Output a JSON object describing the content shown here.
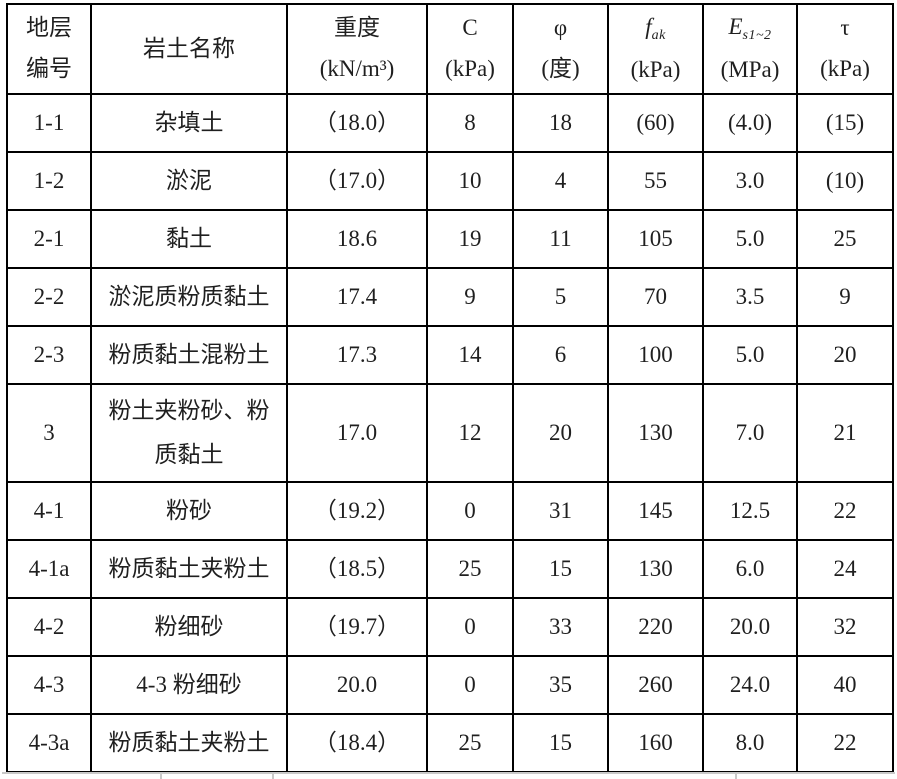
{
  "header": {
    "layer_no_line1": "地层",
    "layer_no_line2": "编号",
    "soil_name": "岩土名称",
    "unit_weight_title": "重度",
    "unit_weight_unit": "(kN/m³)",
    "cohesion_symbol": "C",
    "cohesion_unit": "(kPa)",
    "phi_symbol": "φ",
    "phi_unit": "(度)",
    "fak_symbol": "f",
    "fak_sub": "ak",
    "fak_unit": "(kPa)",
    "es_symbol": "E",
    "es_sub": "s1~2",
    "es_unit": "(MPa)",
    "tau_symbol": "τ",
    "tau_unit": "(kPa)"
  },
  "rows": [
    {
      "layer": "1-1",
      "name": "杂填土",
      "unit_weight": "（18.0）",
      "c": "8",
      "phi": "18",
      "fak": "(60)",
      "es": "(4.0)",
      "tau": "(15)"
    },
    {
      "layer": "1-2",
      "name": "淤泥",
      "unit_weight": "（17.0）",
      "c": "10",
      "phi": "4",
      "fak": "55",
      "es": "3.0",
      "tau": "(10)"
    },
    {
      "layer": "2-1",
      "name": "黏土",
      "unit_weight": "18.6",
      "c": "19",
      "phi": "11",
      "fak": "105",
      "es": "5.0",
      "tau": "25"
    },
    {
      "layer": "2-2",
      "name": "淤泥质粉质黏土",
      "unit_weight": "17.4",
      "c": "9",
      "phi": "5",
      "fak": "70",
      "es": "3.5",
      "tau": "9"
    },
    {
      "layer": "2-3",
      "name": "粉质黏土混粉土",
      "unit_weight": "17.3",
      "c": "14",
      "phi": "6",
      "fak": "100",
      "es": "5.0",
      "tau": "20"
    },
    {
      "layer": "3",
      "name": "粉土夹粉砂、粉质黏土",
      "unit_weight": "17.0",
      "c": "12",
      "phi": "20",
      "fak": "130",
      "es": "7.0",
      "tau": "21"
    },
    {
      "layer": "4-1",
      "name": "粉砂",
      "unit_weight": "（19.2）",
      "c": "0",
      "phi": "31",
      "fak": "145",
      "es": "12.5",
      "tau": "22"
    },
    {
      "layer": "4-1a",
      "name": "粉质黏土夹粉土",
      "unit_weight": "（18.5）",
      "c": "25",
      "phi": "15",
      "fak": "130",
      "es": "6.0",
      "tau": "24"
    },
    {
      "layer": "4-2",
      "name": "粉细砂",
      "unit_weight": "（19.7）",
      "c": "0",
      "phi": "33",
      "fak": "220",
      "es": "20.0",
      "tau": "32"
    },
    {
      "layer": "4-3",
      "name": "4-3 粉细砂",
      "unit_weight": "20.0",
      "c": "0",
      "phi": "35",
      "fak": "260",
      "es": "24.0",
      "tau": "40"
    },
    {
      "layer": "4-3a",
      "name": "粉质黏土夹粉土",
      "unit_weight": "（18.4）",
      "c": "25",
      "phi": "15",
      "fak": "160",
      "es": "8.0",
      "tau": "22"
    }
  ]
}
